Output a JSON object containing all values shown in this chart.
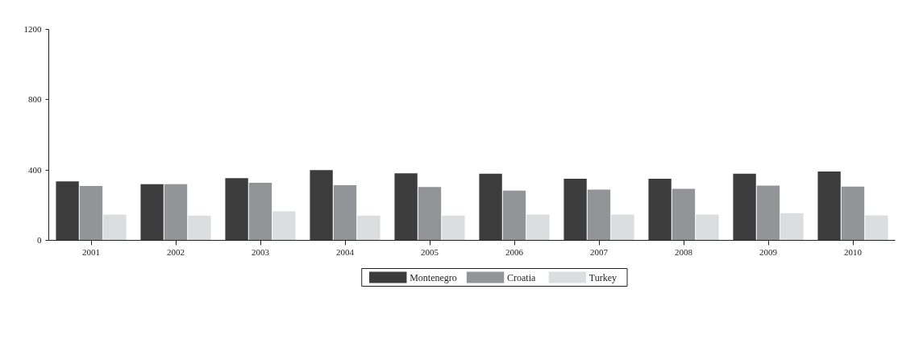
{
  "chart_data": {
    "type": "bar",
    "categories": [
      "2001",
      "2002",
      "2003",
      "2004",
      "2005",
      "2006",
      "2007",
      "2008",
      "2009",
      "2010"
    ],
    "series": [
      {
        "name": "Montenegro",
        "color": "#3c3c3c",
        "values": [
          336,
          319,
          354,
          400,
          381,
          379,
          350,
          350,
          379,
          392
        ]
      },
      {
        "name": "Croatia",
        "color": "#939498",
        "values": [
          309,
          319,
          328,
          314,
          304,
          283,
          288,
          293,
          311,
          306
        ]
      },
      {
        "name": "Turkey",
        "color": "#dcddde",
        "values": [
          146,
          141,
          165,
          141,
          141,
          147,
          147,
          147,
          155,
          142
        ]
      }
    ],
    "ylim": [
      0,
      1200
    ],
    "yticks": [
      0,
      400,
      800,
      1200
    ],
    "grid": false,
    "legend": "bottom"
  }
}
